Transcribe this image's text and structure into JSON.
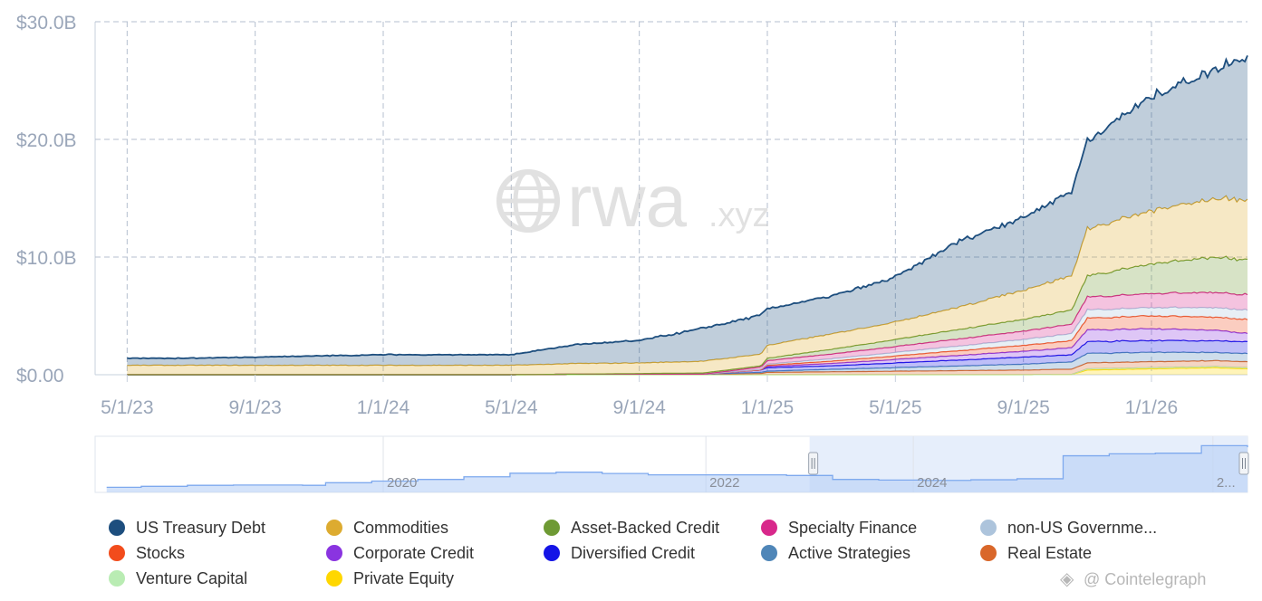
{
  "chart_data": {
    "type": "area",
    "stacked": true,
    "title": "",
    "xlabel": "",
    "ylabel": "",
    "ylim": [
      0,
      30
    ],
    "y_unit": "B",
    "y_ticks": [
      "$0.00",
      "$10.0B",
      "$20.0B",
      "$30.0B"
    ],
    "x_ticks": [
      "5/1/23",
      "9/1/23",
      "1/1/24",
      "5/1/24",
      "9/1/24",
      "1/1/25",
      "5/1/25",
      "9/1/25",
      "1/1/26"
    ],
    "grid": true,
    "x": [
      0,
      2,
      4,
      6,
      8,
      10,
      12,
      14,
      16,
      18,
      19.8,
      20,
      22,
      24,
      26,
      28,
      29.5,
      30,
      32,
      34,
      35
    ],
    "series": [
      {
        "name": "Private Equity",
        "color": "#ffd700",
        "values": [
          0,
          0,
          0,
          0,
          0,
          0,
          0,
          0,
          0,
          0,
          0,
          0,
          0,
          0,
          0,
          0,
          0.02,
          0.4,
          0.5,
          0.6,
          0.5
        ]
      },
      {
        "name": "Venture Capital",
        "color": "#b9ecb3",
        "values": [
          0,
          0,
          0,
          0,
          0,
          0,
          0,
          0,
          0,
          0,
          0,
          0,
          0,
          0,
          0,
          0,
          0,
          0.1,
          0.1,
          0.1,
          0.1
        ]
      },
      {
        "name": "Real Estate",
        "color": "#d9672a",
        "values": [
          0,
          0,
          0,
          0,
          0,
          0,
          0,
          0.05,
          0.05,
          0.05,
          0.1,
          0.2,
          0.25,
          0.3,
          0.35,
          0.4,
          0.45,
          0.5,
          0.5,
          0.5,
          0.5
        ]
      },
      {
        "name": "Active Strategies",
        "color": "#4f86b8",
        "values": [
          0,
          0,
          0,
          0,
          0,
          0,
          0,
          0,
          0,
          0,
          0.1,
          0.1,
          0.2,
          0.3,
          0.4,
          0.5,
          0.6,
          0.8,
          0.8,
          0.7,
          0.7
        ]
      },
      {
        "name": "Diversified Credit",
        "color": "#1414e6",
        "values": [
          0,
          0,
          0,
          0,
          0,
          0,
          0,
          0,
          0,
          0,
          0.2,
          0.3,
          0.3,
          0.4,
          0.5,
          0.6,
          0.6,
          1.0,
          1.0,
          1.0,
          1.0
        ]
      },
      {
        "name": "Corporate Credit",
        "color": "#8a34e0",
        "values": [
          0,
          0,
          0,
          0,
          0,
          0,
          0,
          0,
          0,
          0,
          0,
          0.1,
          0.2,
          0.3,
          0.4,
          0.5,
          0.6,
          1.0,
          1.0,
          0.9,
          0.7
        ]
      },
      {
        "name": "Stocks",
        "color": "#f24c1c",
        "values": [
          0,
          0,
          0,
          0,
          0,
          0,
          0,
          0,
          0,
          0,
          0,
          0.1,
          0.2,
          0.3,
          0.4,
          0.5,
          0.6,
          1.0,
          1.1,
          1.1,
          1.2
        ]
      },
      {
        "name": "non-US Government Debt",
        "color": "#adc4dc",
        "values": [
          0,
          0,
          0,
          0,
          0,
          0,
          0,
          0,
          0,
          0,
          0.05,
          0.1,
          0.2,
          0.3,
          0.4,
          0.5,
          0.6,
          0.7,
          0.7,
          0.8,
          0.8
        ]
      },
      {
        "name": "Specialty Finance",
        "color": "#d8288b",
        "values": [
          0,
          0,
          0,
          0,
          0,
          0,
          0,
          0,
          0,
          0,
          0.2,
          0.3,
          0.4,
          0.5,
          0.6,
          0.7,
          0.8,
          1.1,
          1.2,
          1.3,
          1.3
        ]
      },
      {
        "name": "Asset-Backed Credit",
        "color": "#6e9a34",
        "values": [
          0,
          0,
          0,
          0,
          0,
          0,
          0,
          0,
          0.05,
          0.1,
          0.1,
          0.2,
          0.4,
          0.6,
          0.8,
          1.0,
          1.2,
          1.8,
          2.5,
          3.0,
          3.0
        ]
      },
      {
        "name": "Commodities",
        "color": "#ddab30",
        "values": [
          0.8,
          0.8,
          0.8,
          0.8,
          0.8,
          0.8,
          0.8,
          0.9,
          0.9,
          1.0,
          1.0,
          1.1,
          1.3,
          1.5,
          1.9,
          2.5,
          2.9,
          4.0,
          4.5,
          5.0,
          5.0
        ]
      },
      {
        "name": "US Treasury Debt",
        "color": "#1d4e7e",
        "values": [
          0.6,
          0.6,
          0.7,
          0.8,
          0.9,
          0.9,
          0.9,
          1.6,
          1.9,
          2.8,
          3.3,
          3.1,
          3.2,
          3.8,
          5.6,
          6.2,
          7.2,
          7.5,
          9.7,
          11.0,
          12.3
        ]
      }
    ],
    "legend": [
      "US Treasury Debt",
      "Commodities",
      "Asset-Backed Credit",
      "Specialty Finance",
      "non-US Governme...",
      "Stocks",
      "Corporate Credit",
      "Diversified Credit",
      "Active Strategies",
      "Real Estate",
      "Venture Capital",
      "Private Equity"
    ],
    "legend_colors": [
      "#1d4e7e",
      "#ddab30",
      "#6e9a34",
      "#d8288b",
      "#adc4dc",
      "#f24c1c",
      "#8a34e0",
      "#1414e6",
      "#4f86b8",
      "#d9672a",
      "#b9ecb3",
      "#ffd700"
    ],
    "legend_position": "bottom",
    "navigator": {
      "labels": [
        "2020",
        "2022",
        "2024",
        "2..."
      ],
      "x": [
        0,
        4,
        8,
        12,
        16,
        18,
        20,
        24,
        28,
        32,
        36,
        40,
        44,
        48,
        52,
        56,
        60,
        64,
        68,
        72,
        76,
        80,
        84,
        88,
        92,
        96,
        100
      ],
      "values": [
        1,
        1.3,
        1.6,
        1.7,
        1.7,
        1.6,
        2.4,
        2.9,
        3.4,
        4.2,
        5.3,
        5.6,
        5.2,
        4.8,
        4.8,
        4.8,
        4.6,
        3.4,
        3.2,
        3.1,
        3.3,
        3.6,
        10.6,
        11.2,
        11.4,
        13.7,
        13.2
      ],
      "selected_range": [
        62,
        100
      ]
    }
  },
  "watermark": {
    "brand": "rwa",
    "suffix": ".xyz"
  },
  "source_credit": "@ Cointelegraph"
}
